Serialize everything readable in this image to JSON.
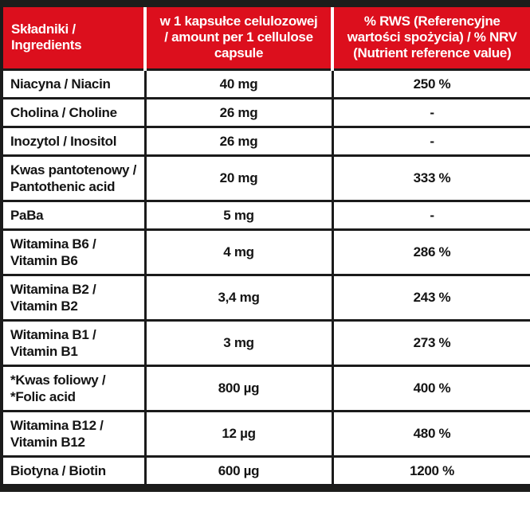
{
  "page": {
    "title": "Składniki / Ingredients supplement facts table"
  },
  "colors": {
    "header_red": "#dc0f1d",
    "border_black": "#1b1b1b",
    "header_text": "#ffffff",
    "body_text": "#141414"
  },
  "table": {
    "headers": [
      {
        "id": "ingredients",
        "text": "Składniki /\nIngredients"
      },
      {
        "id": "amount",
        "text": "w 1 kapsułce celulozowej\n/ amount per 1 cellulose\ncapsule"
      },
      {
        "id": "rws",
        "text": "% RWS (Referencyjne\nwartości spożycia) / % NRV\n(Nutrient reference value)"
      }
    ],
    "rows": [
      {
        "ingredient": "Niacyna / Niacin",
        "amount": "40 mg",
        "rws": "250 %"
      },
      {
        "ingredient": "Cholina / Choline",
        "amount": "26 mg",
        "rws": "-"
      },
      {
        "ingredient": "Inozytol / Inositol",
        "amount": "26 mg",
        "rws": "-"
      },
      {
        "ingredient": "Kwas pantotenowy /\nPantothenic acid",
        "amount": "20 mg",
        "rws": "333 %"
      },
      {
        "ingredient": "PaBa",
        "amount": "5 mg",
        "rws": "-"
      },
      {
        "ingredient": "Witamina B6 /\nVitamin B6",
        "amount": "4 mg",
        "rws": "286 %"
      },
      {
        "ingredient": "Witamina B2 /\nVitamin B2",
        "amount": "3,4 mg",
        "rws": "243 %"
      },
      {
        "ingredient": "Witamina B1 /\nVitamin B1",
        "amount": "3 mg",
        "rws": "273 %"
      },
      {
        "ingredient": "*Kwas foliowy /\n*Folic acid",
        "amount": "800 µg",
        "rws": "400 %"
      },
      {
        "ingredient": "Witamina B12 /\nVitamin B12",
        "amount": "12 µg",
        "rws": "480 %"
      },
      {
        "ingredient": "Biotyna / Biotin",
        "amount": "600 µg",
        "rws": "1200 %"
      }
    ]
  }
}
